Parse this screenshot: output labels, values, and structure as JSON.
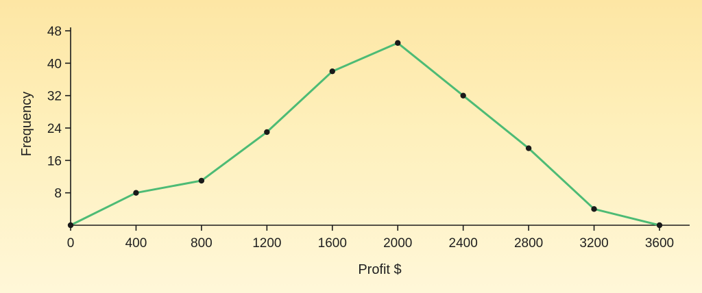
{
  "chart_data": {
    "type": "line",
    "title": "",
    "xlabel": "Profit $",
    "ylabel": "Frequency",
    "xlim": [
      0,
      3600
    ],
    "ylim": [
      0,
      48
    ],
    "x_ticks": [
      0,
      400,
      800,
      1200,
      1600,
      2000,
      2400,
      2800,
      3200,
      3600
    ],
    "y_ticks": [
      8,
      16,
      24,
      32,
      40,
      48
    ],
    "grid": false,
    "legend": "none",
    "series": [
      {
        "x": [
          0,
          400,
          800,
          1200,
          1600,
          2000,
          2400,
          2800,
          3200,
          3600
        ],
        "y": [
          0,
          8,
          11,
          23,
          38,
          45,
          32,
          19,
          4,
          0
        ]
      }
    ],
    "colors": {
      "line": "#4dbb75",
      "marker": "#1a1a1a",
      "axis": "#1a1a1a"
    }
  }
}
